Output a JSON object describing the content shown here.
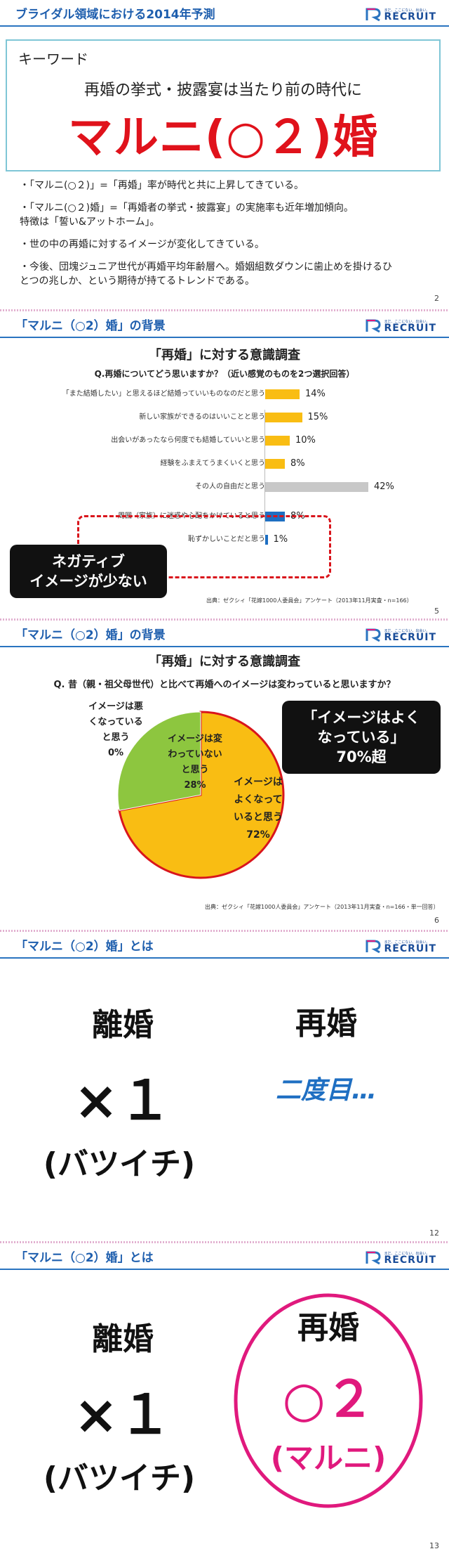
{
  "logo": {
    "wordmark": "RECRUIT",
    "tagline": "まだ、ここにない、出会い。"
  },
  "slide1": {
    "title": "ブライダル領域における2014年予測",
    "keyword_label": "キーワード",
    "keyword_sub": "再婚の挙式・披露宴は当たり前の時代に",
    "keyword_main": "マルニ(○２)婚",
    "bullets": [
      "・「マルニ(○２)」=「再婚」率が時代と共に上昇してきている。",
      "・「マルニ(○２)婚」=「再婚者の挙式・披露宴」の実施率も近年増加傾向。",
      "特徴は「誓い&アットホーム」。",
      "・世の中の再婚に対するイメージが変化してきている。",
      "・今後、団塊ジュニア世代が再婚平均年齢層へ。婚姻組数ダウンに歯止めを掛けるひ",
      "とつの兆しか、という期待が持てるトレンドである。"
    ],
    "page": "2"
  },
  "slide2": {
    "title": "「マルニ（○2）婚」の背景",
    "heading": "「再婚」に対する意識調査",
    "question": "Q.再婚についてどう思いますか？（近い感覚のものを2つ選択回答）",
    "callout": [
      "ネガティブ",
      "イメージが少ない"
    ],
    "source": "出典：ゼクシィ「花嫁1000人委員会」アンケート（2013年11月実査・n=166）",
    "page": "5"
  },
  "slide3": {
    "title": "「マルニ（○2）婚」の背景",
    "heading": "「再婚」に対する意識調査",
    "question": "Q. 昔（親・祖父母世代）と比べて再婚へのイメージは変わっていると思いますか？",
    "label_bad": [
      "イメージは悪",
      "くなっている",
      "と思う",
      "0%"
    ],
    "label_same": [
      "イメージは変",
      "わっていない",
      "と思う",
      "28%"
    ],
    "label_good": [
      "イメージは",
      "よくなって",
      "いると思う",
      "72%"
    ],
    "callout": [
      "「イメージはよく",
      "なっている」",
      "70%超"
    ],
    "source": "出典：ゼクシィ「花嫁1000人委員会」アンケート（2013年11月実査・n=166・単一回答）",
    "page": "6"
  },
  "slide4": {
    "title": "「マルニ（○2）婚」とは",
    "left_word": "離婚",
    "left_mark": "×１",
    "left_reading": "(バツイチ)",
    "right_word": "再婚",
    "right_note": "二度目…",
    "page": "12"
  },
  "slide5": {
    "title": "「マルニ（○2）婚」とは",
    "left_word": "離婚",
    "left_mark": "×１",
    "left_reading": "(バツイチ)",
    "right_word": "再婚",
    "right_mark": "○２",
    "right_reading": "(マルニ)",
    "page": "13"
  },
  "colors": {
    "accent_red": "#e0121b",
    "header_blue": "#1f5fae",
    "bar_yellow": "#f9bd13",
    "bar_gray": "#c8c8c8",
    "bar_blue": "#1e6fc2",
    "pie_green": "#8dc63f",
    "magenta": "#e0197d",
    "note_blue": "#1f6fc2"
  },
  "chart_data": [
    {
      "type": "bar",
      "orientation": "horizontal",
      "categories": [
        "「また結婚したい」と思えるほど結婚っていいものなのだと思う",
        "新しい家族ができるのはいいことと思う",
        "出会いがあったなら何度でも結婚していいと思う",
        "経験をふまえてうまくいくと思う",
        "その人の自由だと思う",
        "周囲（家族）に迷惑や心配をかけていると思う",
        "恥ずかしいことだと思う"
      ],
      "values": [
        14,
        15,
        10,
        8,
        42,
        8,
        1
      ],
      "value_labels": [
        "14%",
        "15%",
        "10%",
        "8%",
        "42%",
        "8%",
        "1%"
      ],
      "bar_colors": [
        "#f9bd13",
        "#f9bd13",
        "#f9bd13",
        "#f9bd13",
        "#c8c8c8",
        "#1e6fc2",
        "#1e6fc2"
      ],
      "xlim": [
        0,
        50
      ]
    },
    {
      "type": "pie",
      "values": [
        72,
        28,
        0
      ],
      "slice_colors": [
        "#f9bd13",
        "#8dc63f",
        "#d9151c"
      ]
    }
  ]
}
